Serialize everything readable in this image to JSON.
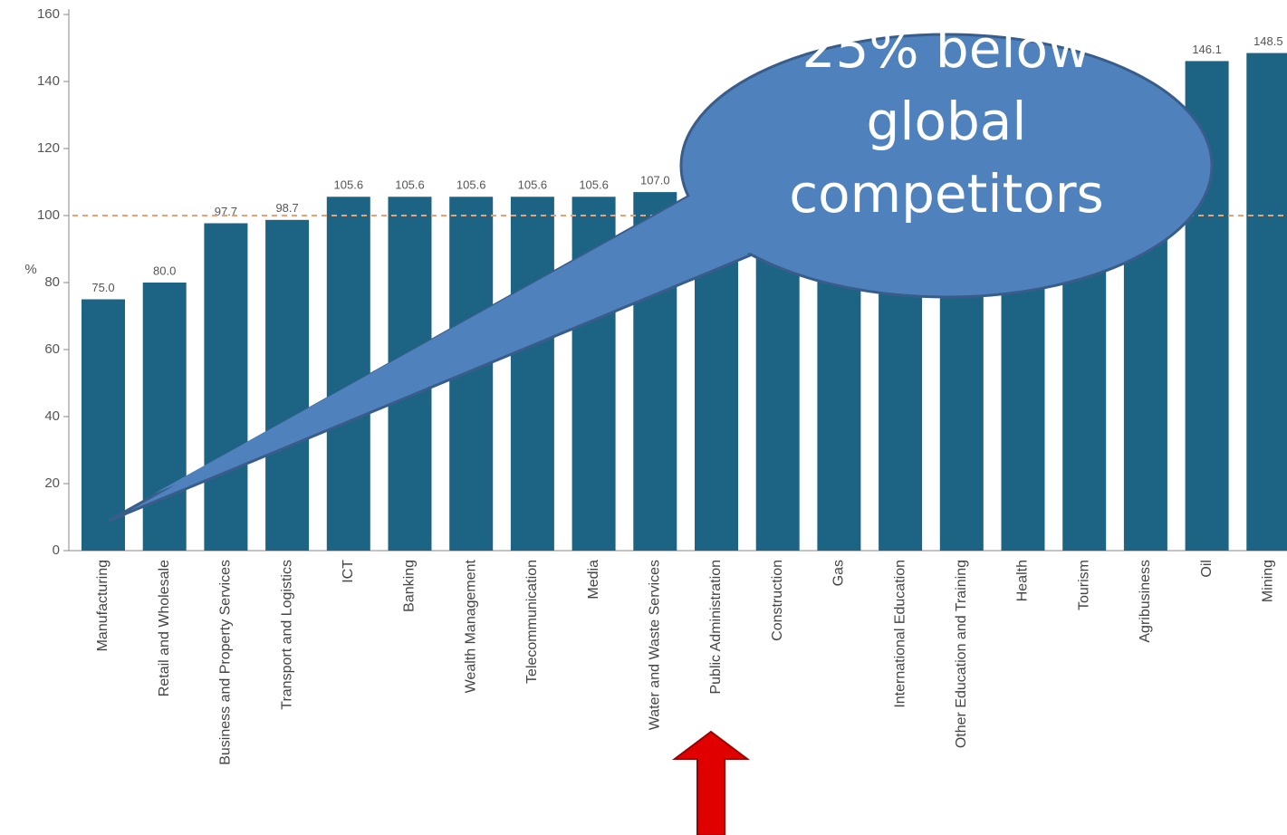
{
  "chart_data": {
    "type": "bar",
    "y_label": "%",
    "categories": [
      "Manufacturing",
      "Retail and Wholesale",
      "Business and Property Services",
      "Transport and Logistics",
      "ICT",
      "Banking",
      "Wealth Management",
      "Telecommunication",
      "Media",
      "Water and Waste Services",
      "Public Administration",
      "Construction",
      "Gas",
      "International Education",
      "Other Education and Training",
      "Health",
      "Tourism",
      "Agribusiness",
      "Oil",
      "Mining"
    ],
    "values": [
      75.0,
      80.0,
      97.7,
      98.7,
      105.6,
      105.6,
      105.6,
      105.6,
      105.6,
      107.0,
      108,
      110,
      112,
      115,
      118,
      120,
      125,
      130,
      146.1,
      148.5
    ],
    "value_labels": [
      "75.0",
      "80.0",
      "97.7",
      "98.7",
      "105.6",
      "105.6",
      "105.6",
      "105.6",
      "105.6",
      "107.0",
      null,
      null,
      null,
      null,
      null,
      null,
      null,
      null,
      "146.1",
      "148.5"
    ],
    "color": "#1d6484",
    "ylim": [
      0,
      160
    ],
    "yticks": [
      0,
      20,
      40,
      60,
      80,
      100,
      120,
      140,
      160
    ],
    "reference_line": {
      "value": 100,
      "color": "#f0a070"
    },
    "annotation": {
      "lines": [
        "25% below",
        "global",
        "competitors"
      ],
      "color": "#4f81bd"
    }
  }
}
